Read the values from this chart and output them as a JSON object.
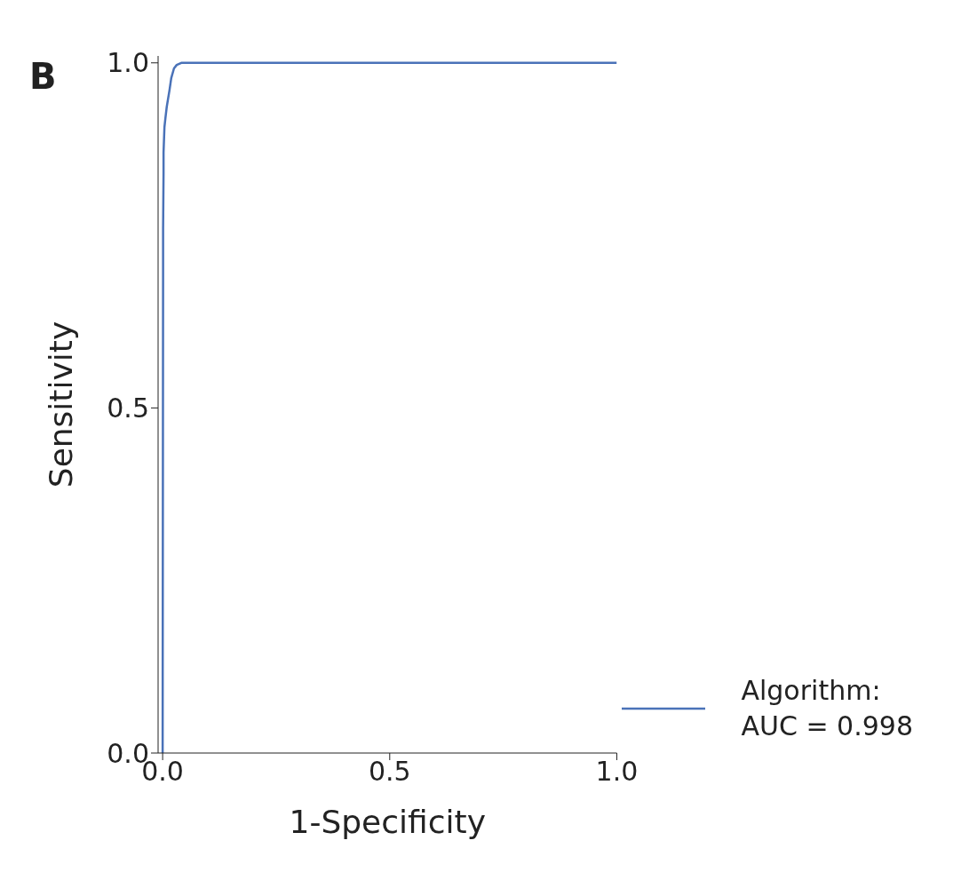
{
  "chart_data": {
    "type": "line",
    "xlabel": "1-Specificity",
    "ylabel": "Sensitivity",
    "annotations": [
      "B"
    ],
    "x": [
      0,
      0.001,
      0.001,
      0.002,
      0.002,
      0.004,
      0.006,
      0.009,
      0.015,
      0.019,
      0.025,
      0.031,
      0.041,
      1.0
    ],
    "series": [
      {
        "name": "Algorithm:\nAUC = 0.998",
        "color": "#4a72b8",
        "values": [
          0,
          0.7,
          0.76,
          0.84,
          0.87,
          0.907,
          0.919,
          0.936,
          0.96,
          0.978,
          0.992,
          0.997,
          1.0,
          1.0
        ]
      }
    ],
    "xlim": [
      -0.01,
      1.0
    ],
    "ylim": [
      0,
      1.01
    ],
    "xticks": [
      {
        "value": 0,
        "label": "0.0"
      },
      0.5,
      {
        "value": 1,
        "label": "1.0"
      }
    ],
    "yticks": [
      {
        "value": 0,
        "label": "0.0"
      },
      0.5,
      {
        "value": 1,
        "label": "1.0"
      }
    ],
    "grid": false,
    "legend": "bottom right",
    "marker": "none",
    "line_style": "solid"
  }
}
